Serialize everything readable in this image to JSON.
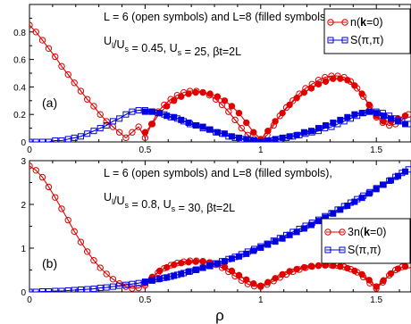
{
  "colors": {
    "n": "#e00000",
    "s": "#0000e0",
    "axis": "#000000"
  },
  "xlabel": "ρ",
  "chart_data": [
    {
      "type": "line",
      "panel_label": "(a)",
      "annotation_lines": [
        "L = 6 (open symbols) and L=8 (filled symbols),",
        "U|/U|s = 0.45, U|s = 25, βt=2L"
      ],
      "xlim": [
        0,
        1.65
      ],
      "ylim": [
        0,
        1.0
      ],
      "xticks": [
        0,
        0.5,
        1,
        1.5
      ],
      "xtick_labels": [
        "0",
        "0.5",
        "1",
        "1.5"
      ],
      "yticks": [
        0,
        0.2,
        0.4,
        0.6,
        0.8
      ],
      "ytick_labels": [
        "0",
        "0.2",
        "0.4",
        "0.6",
        "0.8"
      ],
      "legend_position": "top-right",
      "series": [
        {
          "name": "n(k=0)",
          "name_parts": [
            "n(",
            "k",
            "=0)"
          ],
          "color": "#e00000",
          "marker": "circle",
          "filled": false,
          "x": [
            0,
            0.028,
            0.056,
            0.083,
            0.111,
            0.139,
            0.167,
            0.194,
            0.222,
            0.25,
            0.278,
            0.306,
            0.333,
            0.361,
            0.389,
            0.417,
            0.444,
            0.472,
            0.5,
            0.528,
            0.556,
            0.583,
            0.611,
            0.639,
            0.667,
            0.694,
            0.722,
            0.75,
            0.778,
            0.806,
            0.833,
            0.861,
            0.889,
            0.917,
            0.944,
            0.972,
            1.0,
            1.028,
            1.056,
            1.083,
            1.111,
            1.139,
            1.167,
            1.194,
            1.222,
            1.25,
            1.278,
            1.306,
            1.333,
            1.361,
            1.389,
            1.417,
            1.444,
            1.472,
            1.5,
            1.528,
            1.556,
            1.583,
            1.611,
            1.639
          ],
          "y": [
            0.85,
            0.8,
            0.74,
            0.68,
            0.62,
            0.55,
            0.49,
            0.43,
            0.37,
            0.31,
            0.26,
            0.2,
            0.15,
            0.11,
            0.07,
            0.03,
            0.07,
            0.11,
            0.03,
            0.13,
            0.22,
            0.27,
            0.31,
            0.34,
            0.36,
            0.37,
            0.37,
            0.36,
            0.34,
            0.31,
            0.27,
            0.22,
            0.16,
            0.1,
            0.05,
            0.02,
            0.01,
            0.05,
            0.12,
            0.19,
            0.25,
            0.3,
            0.35,
            0.39,
            0.42,
            0.45,
            0.47,
            0.48,
            0.48,
            0.47,
            0.44,
            0.39,
            0.33,
            0.26,
            0.18,
            0.14,
            0.12,
            0.13,
            0.16,
            0.2
          ]
        },
        {
          "name": "n(k=0), L=8",
          "color": "#e00000",
          "marker": "circle",
          "filled": true,
          "x": [
            0.5,
            0.531,
            0.563,
            0.594,
            0.625,
            0.656,
            0.688,
            0.719,
            0.75,
            0.781,
            0.813,
            0.844,
            0.875,
            0.906,
            0.938,
            0.969,
            1.0,
            1.031,
            1.063,
            1.094,
            1.125,
            1.156,
            1.188,
            1.219,
            1.25,
            1.281,
            1.313,
            1.344,
            1.375,
            1.406,
            1.438,
            1.469,
            1.5,
            1.531,
            1.563,
            1.594,
            1.625
          ],
          "y": [
            0.07,
            0.13,
            0.21,
            0.26,
            0.3,
            0.33,
            0.35,
            0.36,
            0.36,
            0.35,
            0.33,
            0.3,
            0.26,
            0.21,
            0.14,
            0.07,
            0.02,
            0.08,
            0.15,
            0.21,
            0.27,
            0.32,
            0.36,
            0.39,
            0.42,
            0.44,
            0.46,
            0.46,
            0.45,
            0.41,
            0.35,
            0.27,
            0.19,
            0.15,
            0.15,
            0.17,
            0.19
          ]
        },
        {
          "name": "S(π,π)",
          "color": "#0000e0",
          "marker": "square",
          "filled": false,
          "x": [
            0,
            0.028,
            0.056,
            0.083,
            0.111,
            0.139,
            0.167,
            0.194,
            0.222,
            0.25,
            0.278,
            0.306,
            0.333,
            0.361,
            0.389,
            0.417,
            0.444,
            0.472,
            0.5,
            0.528,
            0.556,
            0.583,
            0.611,
            0.639,
            0.667,
            0.694,
            0.722,
            0.75,
            0.778,
            0.806,
            0.833,
            0.861,
            0.889,
            0.917,
            0.944,
            0.972,
            1.0,
            1.028,
            1.056,
            1.083,
            1.111,
            1.139,
            1.167,
            1.194,
            1.222,
            1.25,
            1.278,
            1.306,
            1.333,
            1.361,
            1.389,
            1.417,
            1.444,
            1.472,
            1.5,
            1.528,
            1.556,
            1.583,
            1.611,
            1.639
          ],
          "y": [
            0.0,
            0.0,
            0.0,
            0.0,
            0.01,
            0.01,
            0.02,
            0.03,
            0.04,
            0.06,
            0.08,
            0.1,
            0.12,
            0.15,
            0.17,
            0.2,
            0.22,
            0.23,
            0.23,
            0.22,
            0.21,
            0.2,
            0.18,
            0.17,
            0.15,
            0.13,
            0.12,
            0.1,
            0.09,
            0.07,
            0.06,
            0.04,
            0.03,
            0.02,
            0.01,
            0.005,
            0.0,
            0.005,
            0.01,
            0.02,
            0.03,
            0.04,
            0.05,
            0.06,
            0.07,
            0.08,
            0.1,
            0.11,
            0.13,
            0.15,
            0.17,
            0.19,
            0.21,
            0.22,
            0.22,
            0.21,
            0.19,
            0.17,
            0.15,
            0.13
          ]
        },
        {
          "name": "S(π,π), L=8",
          "color": "#0000e0",
          "marker": "square",
          "filled": true,
          "x": [
            0.5,
            0.531,
            0.563,
            0.594,
            0.625,
            0.656,
            0.688,
            0.719,
            0.75,
            0.781,
            0.813,
            0.844,
            0.875,
            0.906,
            0.938,
            0.969,
            1.0,
            1.031,
            1.063,
            1.094,
            1.125,
            1.156,
            1.188,
            1.219,
            1.25,
            1.281,
            1.313,
            1.344,
            1.375,
            1.406,
            1.438,
            1.469,
            1.5,
            1.531,
            1.563,
            1.594,
            1.625
          ],
          "y": [
            0.22,
            0.22,
            0.21,
            0.19,
            0.18,
            0.16,
            0.14,
            0.12,
            0.11,
            0.09,
            0.07,
            0.06,
            0.04,
            0.03,
            0.02,
            0.01,
            0.0,
            0.01,
            0.02,
            0.03,
            0.04,
            0.05,
            0.07,
            0.08,
            0.1,
            0.12,
            0.14,
            0.16,
            0.18,
            0.2,
            0.21,
            0.22,
            0.21,
            0.19,
            0.17,
            0.15,
            0.13
          ]
        }
      ]
    },
    {
      "type": "line",
      "panel_label": "(b)",
      "annotation_lines": [
        "L = 6 (open symbols) and L=8 (filled symbols),",
        "U|/U|s = 0.8, U|s = 30, βt=2L"
      ],
      "xlim": [
        0,
        1.65
      ],
      "ylim": [
        0,
        3.0
      ],
      "xticks": [
        0,
        0.5,
        1,
        1.5
      ],
      "xtick_labels": [
        "0",
        "0.5",
        "1",
        "1.5"
      ],
      "yticks": [
        0,
        1,
        2,
        3
      ],
      "ytick_labels": [
        "0",
        "1",
        "2",
        "3"
      ],
      "legend_position": "right",
      "series": [
        {
          "name": "3n(k=0)",
          "name_parts": [
            "3n(",
            "k",
            "=0)"
          ],
          "color": "#e00000",
          "marker": "circle",
          "filled": false,
          "x": [
            0,
            0.028,
            0.056,
            0.083,
            0.111,
            0.139,
            0.167,
            0.194,
            0.222,
            0.25,
            0.278,
            0.306,
            0.333,
            0.361,
            0.389,
            0.417,
            0.444,
            0.472,
            0.5,
            0.528,
            0.556,
            0.583,
            0.611,
            0.639,
            0.667,
            0.694,
            0.722,
            0.75,
            0.778,
            0.806,
            0.833,
            0.861,
            0.889,
            0.917,
            0.944,
            0.972,
            1.0,
            1.028,
            1.056,
            1.083,
            1.111,
            1.139,
            1.167,
            1.194,
            1.222,
            1.25,
            1.278,
            1.306,
            1.333,
            1.361,
            1.389,
            1.417,
            1.444,
            1.472,
            1.5,
            1.528,
            1.556,
            1.583,
            1.611,
            1.639
          ],
          "y": [
            2.88,
            2.78,
            2.62,
            2.4,
            2.16,
            1.9,
            1.64,
            1.38,
            1.14,
            0.92,
            0.72,
            0.55,
            0.41,
            0.29,
            0.19,
            0.12,
            0.08,
            0.09,
            0.15,
            0.3,
            0.44,
            0.54,
            0.61,
            0.66,
            0.69,
            0.71,
            0.71,
            0.7,
            0.67,
            0.62,
            0.55,
            0.46,
            0.36,
            0.26,
            0.18,
            0.13,
            0.12,
            0.17,
            0.25,
            0.33,
            0.4,
            0.46,
            0.51,
            0.55,
            0.58,
            0.6,
            0.61,
            0.61,
            0.6,
            0.57,
            0.52,
            0.45,
            0.34,
            0.2,
            0.08,
            0.22,
            0.38,
            0.5,
            0.57,
            0.61
          ]
        },
        {
          "name": "3n(k=0), L=8",
          "color": "#e00000",
          "marker": "circle",
          "filled": true,
          "x": [
            0.5,
            0.531,
            0.563,
            0.594,
            0.625,
            0.656,
            0.688,
            0.719,
            0.75,
            0.781,
            0.813,
            0.844,
            0.875,
            0.906,
            0.938,
            0.969,
            1.0,
            1.031,
            1.063,
            1.094,
            1.125,
            1.156,
            1.188,
            1.219,
            1.25,
            1.281,
            1.313,
            1.344,
            1.375,
            1.406,
            1.438,
            1.469,
            1.5,
            1.531,
            1.563,
            1.594,
            1.625
          ],
          "y": [
            0.2,
            0.34,
            0.48,
            0.56,
            0.62,
            0.66,
            0.68,
            0.69,
            0.69,
            0.67,
            0.63,
            0.57,
            0.48,
            0.38,
            0.28,
            0.19,
            0.14,
            0.22,
            0.31,
            0.4,
            0.47,
            0.52,
            0.56,
            0.59,
            0.6,
            0.61,
            0.6,
            0.58,
            0.54,
            0.48,
            0.4,
            0.27,
            0.12,
            0.26,
            0.42,
            0.53,
            0.58
          ]
        },
        {
          "name": "S(π,π)",
          "color": "#0000e0",
          "marker": "square",
          "filled": false,
          "x": [
            0,
            0.028,
            0.056,
            0.083,
            0.111,
            0.139,
            0.167,
            0.194,
            0.222,
            0.25,
            0.278,
            0.306,
            0.333,
            0.361,
            0.389,
            0.417,
            0.444,
            0.472,
            0.5,
            0.528,
            0.556,
            0.583,
            0.611,
            0.639,
            0.667,
            0.694,
            0.722,
            0.75,
            0.778,
            0.806,
            0.833,
            0.861,
            0.889,
            0.917,
            0.944,
            0.972,
            1.0,
            1.028,
            1.056,
            1.083,
            1.111,
            1.139,
            1.167,
            1.194,
            1.222,
            1.25,
            1.278,
            1.306,
            1.333,
            1.361,
            1.389,
            1.417,
            1.444,
            1.472,
            1.5,
            1.528,
            1.556,
            1.583,
            1.611,
            1.639
          ],
          "y": [
            0.0,
            0.0,
            0.01,
            0.01,
            0.02,
            0.02,
            0.03,
            0.04,
            0.05,
            0.06,
            0.07,
            0.09,
            0.1,
            0.12,
            0.14,
            0.16,
            0.18,
            0.2,
            0.23,
            0.26,
            0.29,
            0.32,
            0.35,
            0.39,
            0.43,
            0.47,
            0.51,
            0.55,
            0.6,
            0.65,
            0.7,
            0.75,
            0.8,
            0.86,
            0.92,
            0.98,
            1.04,
            1.1,
            1.17,
            1.23,
            1.3,
            1.37,
            1.44,
            1.51,
            1.58,
            1.65,
            1.73,
            1.8,
            1.88,
            1.96,
            2.04,
            2.12,
            2.2,
            2.28,
            2.37,
            2.45,
            2.54,
            2.63,
            2.72,
            2.8
          ]
        },
        {
          "name": "S(π,π), L=8",
          "color": "#0000e0",
          "marker": "square",
          "filled": true,
          "x": [
            0.5,
            0.531,
            0.563,
            0.594,
            0.625,
            0.656,
            0.688,
            0.719,
            0.75,
            0.781,
            0.813,
            0.844,
            0.875,
            0.906,
            0.938,
            0.969,
            1.0,
            1.031,
            1.063,
            1.094,
            1.125,
            1.156,
            1.188,
            1.219,
            1.25,
            1.281,
            1.313,
            1.344,
            1.375,
            1.406,
            1.438,
            1.469,
            1.5,
            1.531,
            1.563,
            1.594,
            1.625
          ],
          "y": [
            0.23,
            0.26,
            0.3,
            0.33,
            0.37,
            0.41,
            0.46,
            0.5,
            0.55,
            0.59,
            0.65,
            0.7,
            0.76,
            0.81,
            0.87,
            0.94,
            1.01,
            1.08,
            1.15,
            1.22,
            1.3,
            1.37,
            1.45,
            1.53,
            1.62,
            1.7,
            1.79,
            1.88,
            1.97,
            2.06,
            2.15,
            2.25,
            2.35,
            2.45,
            2.55,
            2.65,
            2.75
          ]
        }
      ]
    }
  ]
}
